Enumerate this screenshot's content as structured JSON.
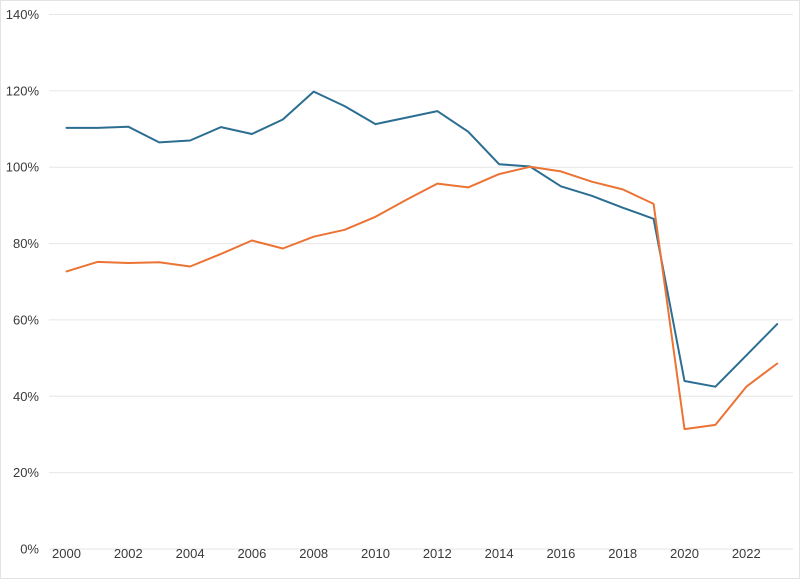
{
  "chart": {
    "background_color": "#ffffff",
    "grid_color": "#e6e6e6",
    "tick_label_color": "#3a3a3a",
    "frame_border_color": "#e3e3e3"
  },
  "chart_data": {
    "type": "line",
    "title": "",
    "xlabel": "",
    "ylabel": "",
    "x": [
      2000,
      2001,
      2002,
      2003,
      2004,
      2005,
      2006,
      2007,
      2008,
      2009,
      2010,
      2011,
      2012,
      2013,
      2014,
      2015,
      2016,
      2017,
      2018,
      2019,
      2020,
      2021,
      2022,
      2023
    ],
    "series": [
      {
        "name": "Blue",
        "color": "#2c6e91",
        "values": [
          110.3,
          110.3,
          110.6,
          106.5,
          107.0,
          110.5,
          108.7,
          112.5,
          119.8,
          116.0,
          111.3,
          113.0,
          114.7,
          109.3,
          100.8,
          100.2,
          95.0,
          92.5,
          89.4,
          86.5,
          44.0,
          42.5,
          50.7,
          58.9
        ]
      },
      {
        "name": "Orange",
        "color": "#eb7334",
        "values": [
          72.7,
          75.2,
          74.9,
          75.1,
          74.0,
          77.3,
          80.8,
          78.7,
          81.8,
          83.6,
          87.0,
          91.5,
          95.7,
          94.7,
          98.2,
          100.1,
          98.9,
          96.2,
          94.2,
          90.4,
          31.4,
          32.5,
          42.5,
          48.6
        ]
      }
    ],
    "ylim": [
      0,
      140
    ],
    "y_tick_values": [
      0,
      20,
      40,
      60,
      80,
      100,
      120,
      140
    ],
    "y_tick_labels": [
      "0%",
      "20%",
      "40%",
      "60%",
      "80%",
      "100%",
      "120%",
      "140%"
    ],
    "x_tick_values": [
      2000,
      2002,
      2004,
      2006,
      2008,
      2010,
      2012,
      2014,
      2016,
      2018,
      2020,
      2022
    ],
    "x_tick_labels": [
      "2000",
      "2002",
      "2004",
      "2006",
      "2008",
      "2010",
      "2012",
      "2014",
      "2016",
      "2018",
      "2020",
      "2022"
    ],
    "grid": "horizontal-only",
    "legend": "none"
  }
}
